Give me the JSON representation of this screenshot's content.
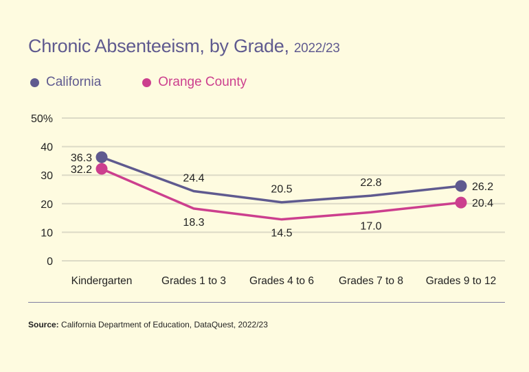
{
  "header": {
    "title": "Chronic Absenteeism, by Grade,",
    "title_suffix": "2022/23"
  },
  "colors": {
    "california": "#5f5a8f",
    "orange_county": "#cc3f8e",
    "background": "#fefbe0",
    "grid": "#dcdac6",
    "text": "#222222"
  },
  "footer": {
    "source_label": "Source:",
    "source_text": "California Department of Education, DataQuest, 2022/23"
  },
  "chart_data": {
    "type": "line",
    "title": "Chronic Absenteeism, by Grade, 2022/23",
    "xlabel": "",
    "ylabel": "",
    "categories": [
      "Kindergarten",
      "Grades 1 to 3",
      "Grades 4 to 6",
      "Grades 7 to 8",
      "Grades 9 to 12"
    ],
    "yticks": [
      0,
      10,
      20,
      30,
      40,
      50
    ],
    "ytick_labels": [
      "0",
      "10",
      "20",
      "30",
      "40",
      "50%"
    ],
    "ylim": [
      0,
      50
    ],
    "grid": true,
    "legend_position": "top-left",
    "series": [
      {
        "name": "California",
        "color": "#5f5a8f",
        "values": [
          36.3,
          24.4,
          20.5,
          22.8,
          26.2
        ],
        "labels": [
          "36.3",
          "24.4",
          "20.5",
          "22.8",
          "26.2"
        ]
      },
      {
        "name": "Orange County",
        "color": "#cc3f8e",
        "values": [
          32.2,
          18.3,
          14.5,
          17.0,
          20.4
        ],
        "labels": [
          "32.2",
          "18.3",
          "14.5",
          "17.0",
          "20.4"
        ]
      }
    ]
  }
}
